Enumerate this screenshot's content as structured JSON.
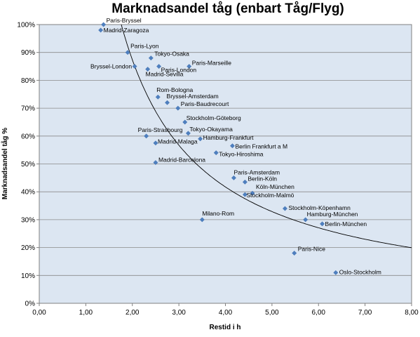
{
  "chart_data": {
    "type": "scatter",
    "title": "Marknadsandel tåg (enbart Tåg/Flyg)",
    "xlabel": "Restid i h",
    "ylabel": "Marknadsandel tåg %",
    "xlim": [
      0,
      8
    ],
    "ylim": [
      0,
      100
    ],
    "x_ticks": [
      "0,00",
      "1,00",
      "2,00",
      "3,00",
      "4,00",
      "5,00",
      "6,00",
      "7,00",
      "8,00"
    ],
    "y_ticks": [
      "0%",
      "10%",
      "20%",
      "30%",
      "40%",
      "50%",
      "60%",
      "70%",
      "80%",
      "90%",
      "100%"
    ],
    "grid": "horizontal",
    "trendline": true,
    "colors": {
      "marker": "#4e7fbf",
      "plot_bg": "#dce6f2",
      "grid": "#8a8a8a",
      "trend": "#000000"
    },
    "points": [
      {
        "label": "Paris-Bryssel",
        "x": 1.38,
        "y": 100
      },
      {
        "label": "Madrid-Zaragoza",
        "x": 1.32,
        "y": 98
      },
      {
        "label": "Paris-Lyon",
        "x": 1.9,
        "y": 90
      },
      {
        "label": "Tokyo-Osaka",
        "x": 2.4,
        "y": 88
      },
      {
        "label": "Bryssel-London",
        "x": 2.05,
        "y": 85
      },
      {
        "label": "Paris-London",
        "x": 2.57,
        "y": 85
      },
      {
        "label": "Paris-Marseille",
        "x": 3.22,
        "y": 85
      },
      {
        "label": "Madrid-Sevilla",
        "x": 2.33,
        "y": 84
      },
      {
        "label": "Rom-Bologna",
        "x": 2.55,
        "y": 74
      },
      {
        "label": "Bryssel-Amsterdam",
        "x": 2.75,
        "y": 72
      },
      {
        "label": "Paris-Baudrecourt",
        "x": 2.98,
        "y": 70
      },
      {
        "label": "Stockholm-Göteborg",
        "x": 3.13,
        "y": 65
      },
      {
        "label": "Paris-Strasbourg",
        "x": 2.3,
        "y": 60
      },
      {
        "label": "Tokyo-Okayama",
        "x": 3.2,
        "y": 61
      },
      {
        "label": "Hamburg-Frankfurt",
        "x": 3.46,
        "y": 59
      },
      {
        "label": "Madrid-Malaga",
        "x": 2.5,
        "y": 57.5
      },
      {
        "label": "Berlin Frankfurt a M",
        "x": 4.15,
        "y": 56.5
      },
      {
        "label": "Tokyo-Hiroshima",
        "x": 3.8,
        "y": 54
      },
      {
        "label": "Madrid-Barcelona",
        "x": 2.5,
        "y": 50.5
      },
      {
        "label": "Paris-Amsterdam",
        "x": 4.18,
        "y": 45
      },
      {
        "label": "Berlin-Köln",
        "x": 4.42,
        "y": 43.5
      },
      {
        "label": "Köln-München",
        "x": 4.58,
        "y": 39.5
      },
      {
        "label": "Stockholm-Malmö",
        "x": 4.42,
        "y": 39
      },
      {
        "label": "Stockholm-Köpenhamn",
        "x": 5.28,
        "y": 34
      },
      {
        "label": "Hamburg-München",
        "x": 5.72,
        "y": 30
      },
      {
        "label": "Milano-Rom",
        "x": 3.5,
        "y": 30
      },
      {
        "label": "Berlin-München",
        "x": 6.08,
        "y": 28.5
      },
      {
        "label": "Paris-Nice",
        "x": 5.48,
        "y": 18
      },
      {
        "label": "Oslo-Stockholm",
        "x": 6.37,
        "y": 11
      }
    ]
  }
}
